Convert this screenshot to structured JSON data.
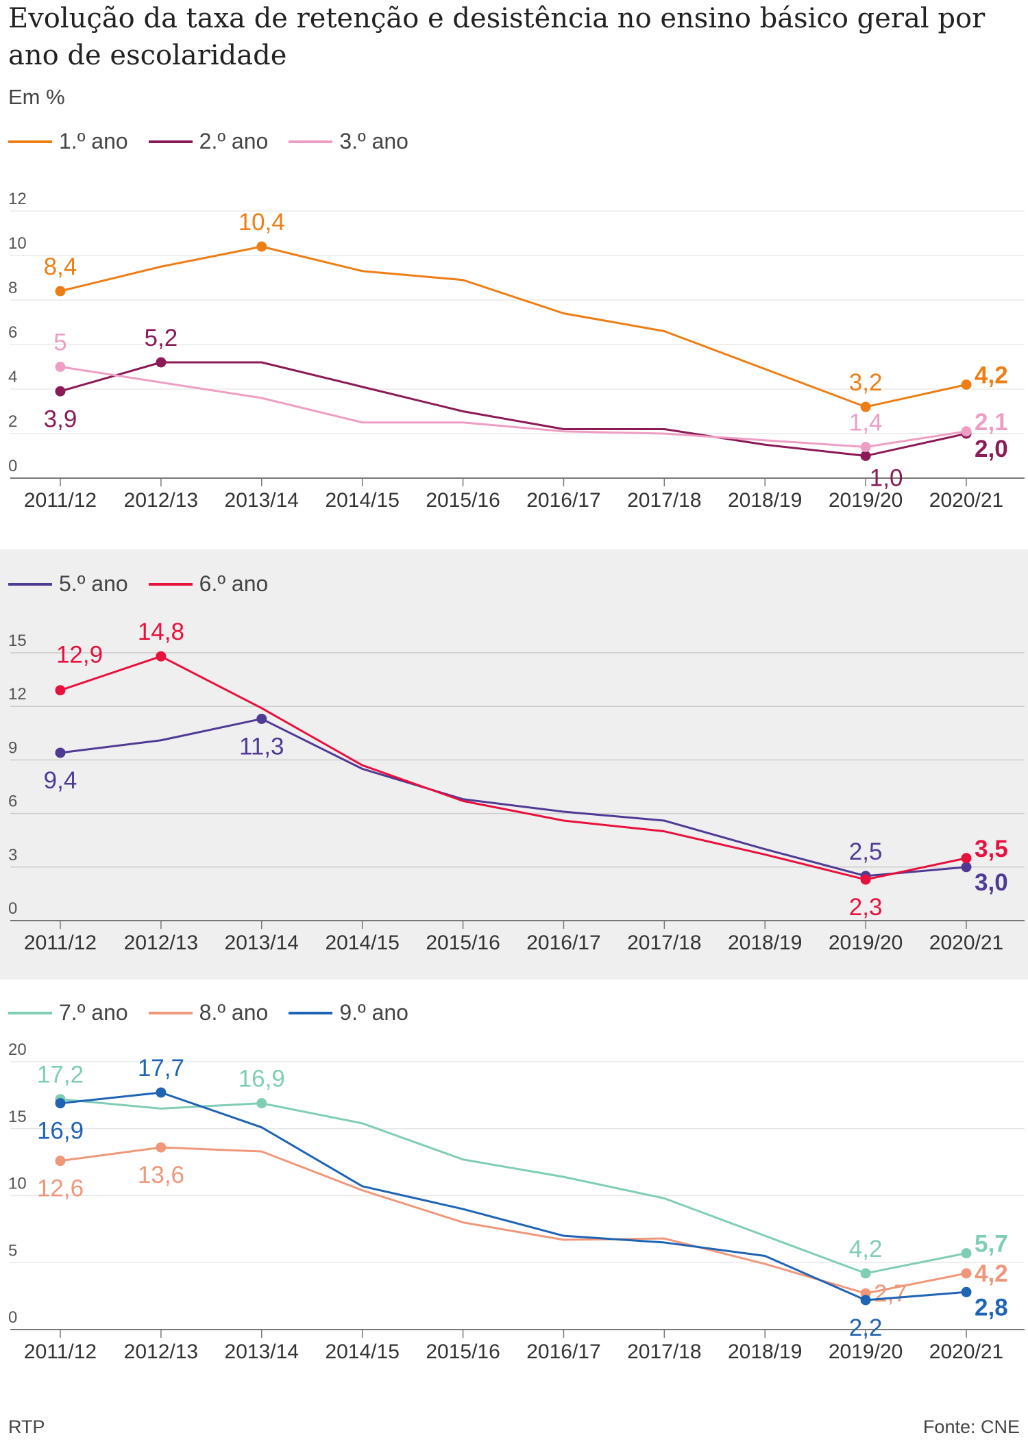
{
  "title": "Evolução da taxa de retenção e desistência no ensino básico geral por ano de escolaridade",
  "subtitle": "Em %",
  "footer": {
    "source_left": "RTP",
    "source_right": "Fonte: CNE"
  },
  "chart_data": [
    {
      "type": "line",
      "categories": [
        "2011/12",
        "2012/13",
        "2013/14",
        "2014/15",
        "2015/16",
        "2016/17",
        "2017/18",
        "2018/19",
        "2019/20",
        "2020/21"
      ],
      "ylim": [
        0,
        12
      ],
      "yticks": [
        0,
        2,
        4,
        6,
        8,
        10,
        12
      ],
      "grid": true,
      "legend": "top-left",
      "series": [
        {
          "name": "1.º ano",
          "color": "#ee7d14",
          "values": [
            8.4,
            9.5,
            10.4,
            9.3,
            8.9,
            7.4,
            6.6,
            4.9,
            3.2,
            4.2
          ],
          "labels": [
            {
              "i": 0,
              "text": "8,4",
              "pos": "above"
            },
            {
              "i": 2,
              "text": "10,4",
              "pos": "above"
            },
            {
              "i": 8,
              "text": "3,2",
              "pos": "above"
            },
            {
              "i": 9,
              "text": "4,2",
              "pos": "right-above"
            }
          ]
        },
        {
          "name": "2.º ano",
          "color": "#8b1a56",
          "values": [
            3.9,
            5.2,
            5.2,
            4.1,
            3.0,
            2.2,
            2.2,
            1.5,
            1.0,
            2.0
          ],
          "labels": [
            {
              "i": 0,
              "text": "3,9",
              "pos": "below"
            },
            {
              "i": 1,
              "text": "5,2",
              "pos": "above"
            },
            {
              "i": 8,
              "text": "1,0",
              "pos": "below-right"
            },
            {
              "i": 9,
              "text": "2,0",
              "pos": "right-below"
            }
          ]
        },
        {
          "name": "3.º ano",
          "color": "#ee9ec4",
          "values": [
            5.0,
            4.3,
            3.6,
            2.5,
            2.5,
            2.1,
            2.0,
            1.7,
            1.4,
            2.1
          ],
          "labels": [
            {
              "i": 0,
              "text": "5",
              "pos": "above"
            },
            {
              "i": 8,
              "text": "1,4",
              "pos": "above"
            },
            {
              "i": 9,
              "text": "2,1",
              "pos": "right-above"
            }
          ]
        }
      ]
    },
    {
      "type": "line",
      "categories": [
        "2011/12",
        "2012/13",
        "2013/14",
        "2014/15",
        "2015/16",
        "2016/17",
        "2017/18",
        "2018/19",
        "2019/20",
        "2020/21"
      ],
      "ylim": [
        0,
        15
      ],
      "yticks": [
        0,
        3,
        6,
        9,
        12,
        15
      ],
      "grid": true,
      "legend": "top-left",
      "series": [
        {
          "name": "5.º ano",
          "color": "#4f3a94",
          "values": [
            9.4,
            10.1,
            11.3,
            8.5,
            6.8,
            6.1,
            5.6,
            4.0,
            2.5,
            3.0
          ],
          "labels": [
            {
              "i": 0,
              "text": "9,4",
              "pos": "below"
            },
            {
              "i": 2,
              "text": "11,3",
              "pos": "below"
            },
            {
              "i": 8,
              "text": "2,5",
              "pos": "above"
            },
            {
              "i": 9,
              "text": "3,0",
              "pos": "right-below"
            }
          ]
        },
        {
          "name": "6.º ano",
          "color": "#e8103c",
          "values": [
            12.9,
            14.8,
            11.9,
            8.7,
            6.7,
            5.6,
            5.0,
            3.7,
            2.3,
            3.5
          ],
          "labels": [
            {
              "i": 0,
              "text": "12,9",
              "pos": "above-right"
            },
            {
              "i": 1,
              "text": "14,8",
              "pos": "above"
            },
            {
              "i": 8,
              "text": "2,3",
              "pos": "below"
            },
            {
              "i": 9,
              "text": "3,5",
              "pos": "right-above"
            }
          ]
        }
      ]
    },
    {
      "type": "line",
      "categories": [
        "2011/12",
        "2012/13",
        "2013/14",
        "2014/15",
        "2015/16",
        "2016/17",
        "2017/18",
        "2018/19",
        "2019/20",
        "2020/21"
      ],
      "ylim": [
        0,
        20
      ],
      "yticks": [
        0,
        5,
        10,
        15,
        20
      ],
      "grid": true,
      "legend": "top-left",
      "series": [
        {
          "name": "7.º ano",
          "color": "#7fcdb5",
          "values": [
            17.2,
            16.5,
            16.9,
            15.4,
            12.7,
            11.4,
            9.8,
            7.0,
            4.2,
            5.7
          ],
          "labels": [
            {
              "i": 0,
              "text": "17,2",
              "pos": "above"
            },
            {
              "i": 2,
              "text": "16,9",
              "pos": "above"
            },
            {
              "i": 8,
              "text": "4,2",
              "pos": "above"
            },
            {
              "i": 9,
              "text": "5,7",
              "pos": "right-above"
            }
          ]
        },
        {
          "name": "8.º ano",
          "color": "#f0977a",
          "values": [
            12.6,
            13.6,
            13.3,
            10.4,
            8.0,
            6.7,
            6.8,
            4.9,
            2.7,
            4.2
          ],
          "labels": [
            {
              "i": 0,
              "text": "12,6",
              "pos": "below"
            },
            {
              "i": 1,
              "text": "13,6",
              "pos": "below"
            },
            {
              "i": 8,
              "text": "2,7",
              "pos": "right"
            },
            {
              "i": 9,
              "text": "4,2",
              "pos": "right"
            }
          ]
        },
        {
          "name": "9.º ano",
          "color": "#1f63b5",
          "values": [
            16.9,
            17.7,
            15.1,
            10.7,
            9.0,
            7.0,
            6.5,
            5.5,
            2.2,
            2.8
          ],
          "labels": [
            {
              "i": 0,
              "text": "16,9",
              "pos": "below"
            },
            {
              "i": 1,
              "text": "17,7",
              "pos": "above"
            },
            {
              "i": 8,
              "text": "2,2",
              "pos": "below"
            },
            {
              "i": 9,
              "text": "2,8",
              "pos": "right-below"
            }
          ]
        }
      ]
    }
  ]
}
